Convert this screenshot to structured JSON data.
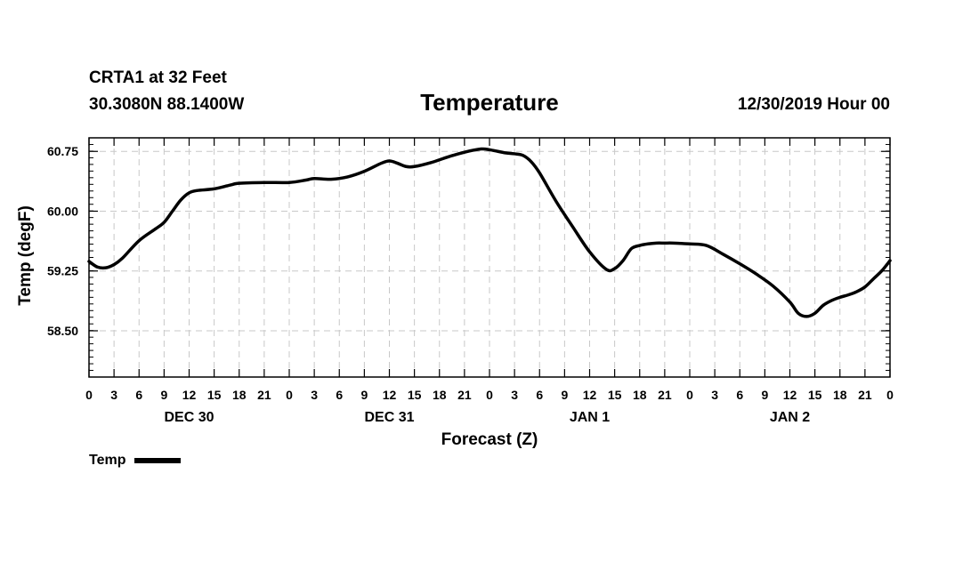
{
  "header": {
    "station": "CRTA1 at 32 Feet",
    "coords": "30.3080N 88.1400W",
    "datetime": "12/30/2019 Hour 00"
  },
  "legend": {
    "label": "Temp"
  },
  "chart_data": {
    "type": "line",
    "title": "Temperature",
    "xlabel": "Forecast (Z)",
    "ylabel": "Temp (degF)",
    "xlim": [
      0,
      96
    ],
    "ylim": [
      57.92,
      60.92
    ],
    "yticks": [
      58.5,
      59.25,
      60.0,
      60.75
    ],
    "ytick_labels": [
      "58.50",
      "59.25",
      "60.00",
      "60.75"
    ],
    "xtick_labels": [
      "0",
      "3",
      "6",
      "9",
      "12",
      "15",
      "18",
      "21",
      "0",
      "3",
      "6",
      "9",
      "12",
      "15",
      "18",
      "21",
      "0",
      "3",
      "6",
      "9",
      "12",
      "15",
      "18",
      "21",
      "0",
      "3",
      "6",
      "9",
      "12",
      "15",
      "18",
      "21",
      "0"
    ],
    "day_labels": [
      {
        "hour": 12,
        "label": "DEC 30"
      },
      {
        "hour": 36,
        "label": "DEC 31"
      },
      {
        "hour": 60,
        "label": "JAN 1"
      },
      {
        "hour": 84,
        "label": "JAN 2"
      }
    ],
    "grid": true,
    "series": [
      {
        "name": "Temp",
        "x": [
          0,
          1,
          2,
          3,
          4,
          6,
          8,
          9,
          10,
          11,
          12,
          13,
          15,
          17,
          18,
          21,
          24,
          26,
          27,
          29,
          31,
          33,
          35,
          36,
          37,
          38,
          39,
          41,
          43,
          45,
          47,
          48,
          49,
          50,
          51,
          52,
          53,
          54,
          56,
          58,
          60,
          62,
          63,
          64,
          65,
          66,
          67,
          68,
          69,
          70,
          72,
          74,
          76,
          78,
          80,
          82,
          84,
          85,
          86,
          87,
          88,
          89,
          90,
          91,
          92,
          93,
          94,
          95,
          96
        ],
        "y": [
          59.37,
          59.3,
          59.29,
          59.33,
          59.41,
          59.63,
          59.78,
          59.86,
          60.0,
          60.14,
          60.23,
          60.26,
          60.28,
          60.33,
          60.35,
          60.36,
          60.36,
          60.39,
          60.41,
          60.4,
          60.43,
          60.5,
          60.6,
          60.63,
          60.6,
          60.56,
          60.56,
          60.61,
          60.68,
          60.74,
          60.78,
          60.77,
          60.75,
          60.73,
          60.72,
          60.7,
          60.62,
          60.48,
          60.12,
          59.8,
          59.49,
          59.27,
          59.28,
          59.38,
          59.53,
          59.57,
          59.59,
          59.6,
          59.6,
          59.6,
          59.59,
          59.57,
          59.46,
          59.34,
          59.21,
          59.06,
          58.86,
          58.72,
          58.68,
          58.72,
          58.82,
          58.88,
          58.92,
          58.95,
          58.99,
          59.05,
          59.15,
          59.25,
          59.38
        ]
      }
    ]
  }
}
